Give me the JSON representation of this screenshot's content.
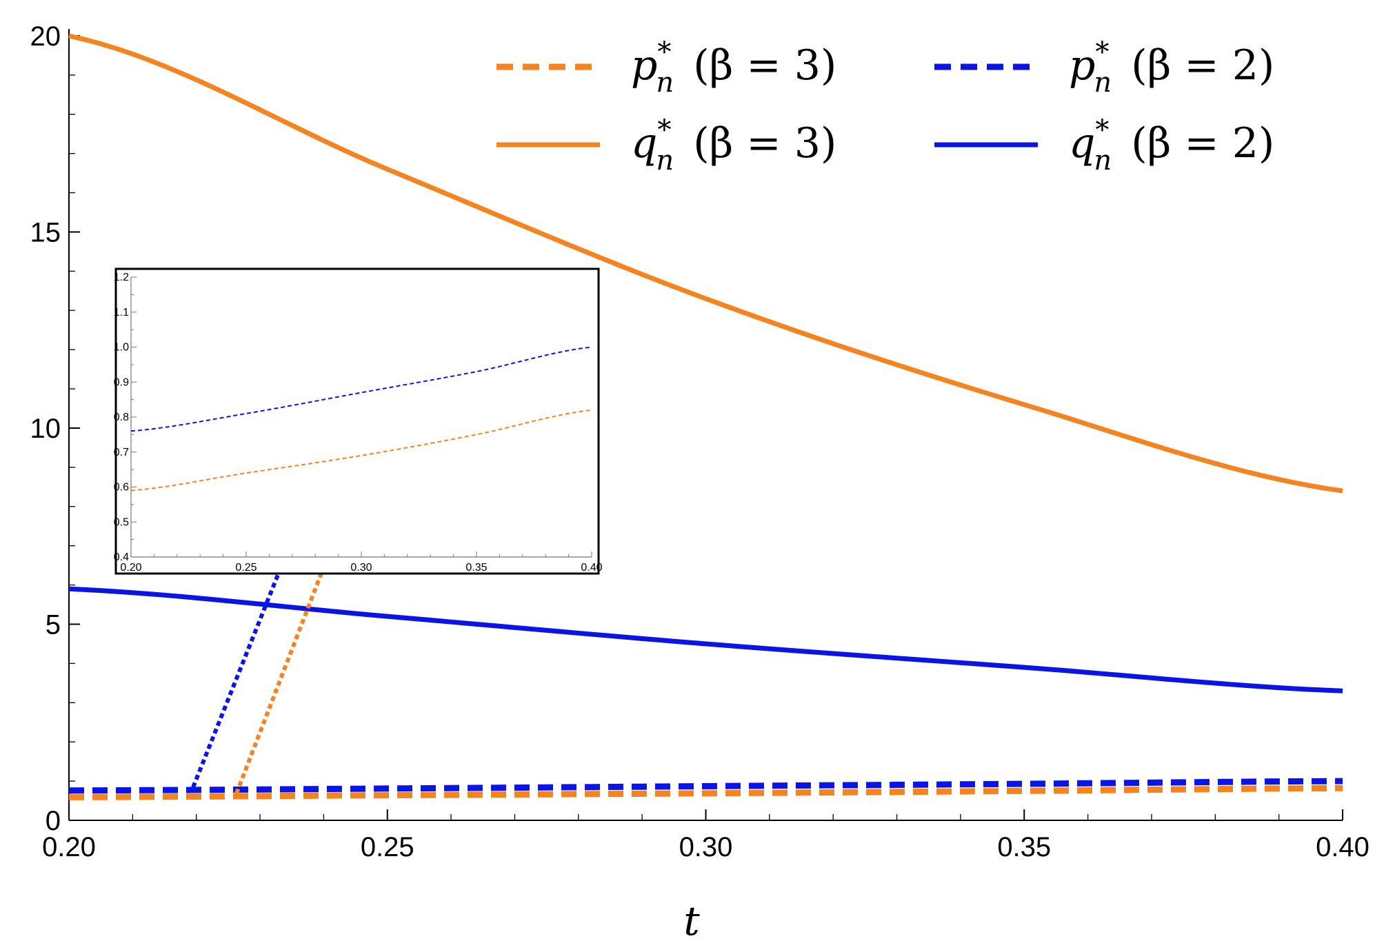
{
  "chart_data": {
    "type": "line",
    "xlabel": "t",
    "ylabel": "",
    "xlim": [
      0.2,
      0.4
    ],
    "ylim": [
      0,
      20
    ],
    "x_ticks": [
      "0.20",
      "0.25",
      "0.30",
      "0.35",
      "0.40"
    ],
    "y_ticks": [
      "0",
      "5",
      "10",
      "15",
      "20"
    ],
    "legend_position": "top-right",
    "x": [
      0.2,
      0.25,
      0.3,
      0.35,
      0.4
    ],
    "series": [
      {
        "name": "p_n* (β = 3)",
        "sym": "p",
        "sub": "n",
        "sup": "*",
        "param": "(β = 3)",
        "style": "dashed",
        "color": "#F5831F",
        "values": [
          0.59,
          0.64,
          0.69,
          0.75,
          0.82
        ]
      },
      {
        "name": "p_n* (β = 2)",
        "sym": "p",
        "sub": "n",
        "sup": "*",
        "param": "(β = 2)",
        "style": "dashed",
        "color": "#0A14E6",
        "values": [
          0.76,
          0.81,
          0.87,
          0.93,
          1.0
        ]
      },
      {
        "name": "q_n* (β = 3)",
        "sym": "q",
        "sub": "n",
        "sup": "*",
        "param": "(β = 3)",
        "style": "solid",
        "color": "#F5831F",
        "values": [
          20.0,
          16.6,
          13.3,
          10.6,
          8.4
        ]
      },
      {
        "name": "q_n* (β = 2)",
        "sym": "q",
        "sub": "n",
        "sup": "*",
        "param": "(β = 2)",
        "style": "solid",
        "color": "#0A14E6",
        "values": [
          5.9,
          5.2,
          4.5,
          3.9,
          3.3
        ]
      }
    ],
    "inset": {
      "xlim": [
        0.2,
        0.4
      ],
      "ylim": [
        0.4,
        1.2
      ],
      "x_ticks": [
        "0.20",
        "0.25",
        "0.30",
        "0.35",
        "0.40"
      ],
      "y_ticks": [
        "0.4",
        "0.5",
        "0.6",
        "0.7",
        "0.8",
        "0.9",
        "1.0",
        "1.1",
        "1.2"
      ],
      "series": [
        {
          "ref": "p_n* (β = 2)",
          "color": "#0A14E6",
          "values": [
            0.76,
            0.81,
            0.87,
            0.93,
            1.0
          ]
        },
        {
          "ref": "p_n* (β = 3)",
          "color": "#F5831F",
          "values": [
            0.59,
            0.64,
            0.69,
            0.75,
            0.82
          ]
        }
      ]
    }
  }
}
